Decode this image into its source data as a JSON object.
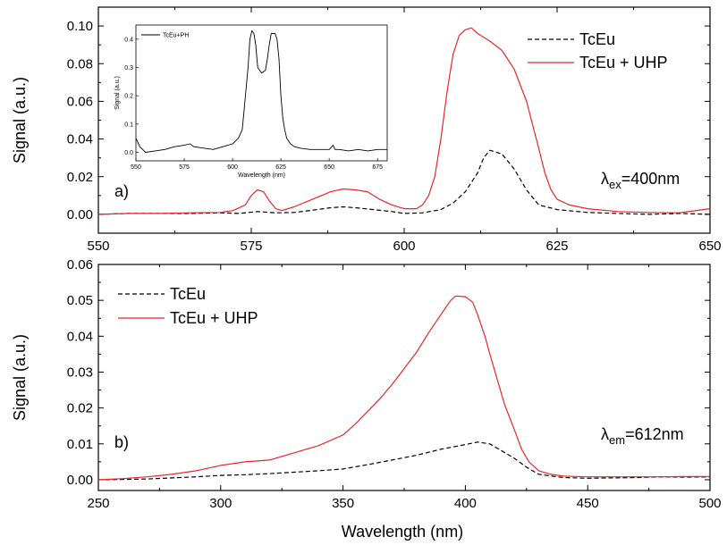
{
  "chart_data": [
    {
      "type": "line",
      "panel_label": "a)",
      "annotation": {
        "prefix": "λ",
        "subscript": "ex",
        "suffix": "=400nm"
      },
      "ylabel": "Signal (a.u.)",
      "xlim": [
        550,
        650
      ],
      "ylim": [
        -0.01,
        0.11
      ],
      "xticks": [
        "550",
        "575",
        "600",
        "625",
        "650"
      ],
      "yticks": [
        "0.00",
        "0.02",
        "0.04",
        "0.06",
        "0.08",
        "0.10"
      ],
      "legend_position": "top-right",
      "series": [
        {
          "name": "TcEu",
          "color": "#000000",
          "style": "dashed",
          "x": [
            550,
            555,
            560,
            565,
            570,
            573,
            576,
            579,
            582,
            585,
            588,
            590,
            592,
            595,
            598,
            600,
            603,
            606,
            608,
            610,
            612,
            613,
            614,
            616,
            618,
            620,
            622,
            625,
            630,
            635,
            640,
            645,
            650
          ],
          "y": [
            0.0,
            0.0005,
            0.0005,
            0.0005,
            0.0008,
            0.0005,
            0.0015,
            0.0008,
            0.001,
            0.0022,
            0.0035,
            0.004,
            0.0035,
            0.0025,
            0.0015,
            0.0005,
            0.0008,
            0.0025,
            0.006,
            0.012,
            0.022,
            0.03,
            0.034,
            0.032,
            0.024,
            0.013,
            0.005,
            0.0025,
            0.001,
            0.0005,
            0.0,
            0.0005,
            0.0
          ]
        },
        {
          "name": "TcEu + UHP",
          "color": "#e8262a",
          "style": "solid",
          "x": [
            550,
            555,
            560,
            565,
            570,
            572,
            574,
            575,
            576,
            577,
            578,
            579,
            580,
            582,
            585,
            588,
            590,
            592,
            594,
            596,
            598,
            600,
            602,
            603,
            604,
            605,
            606,
            607,
            608,
            609,
            610,
            611,
            612,
            613,
            614,
            616,
            618,
            620,
            622,
            623,
            624,
            625,
            627,
            630,
            635,
            640,
            645,
            650
          ],
          "y": [
            0.0,
            0.0005,
            0.0005,
            0.0008,
            0.001,
            0.002,
            0.005,
            0.01,
            0.013,
            0.012,
            0.007,
            0.003,
            0.002,
            0.004,
            0.008,
            0.012,
            0.0135,
            0.013,
            0.012,
            0.008,
            0.005,
            0.003,
            0.003,
            0.005,
            0.01,
            0.02,
            0.04,
            0.065,
            0.085,
            0.095,
            0.098,
            0.099,
            0.096,
            0.094,
            0.092,
            0.087,
            0.077,
            0.06,
            0.035,
            0.022,
            0.013,
            0.008,
            0.005,
            0.003,
            0.0015,
            0.001,
            0.0008,
            0.003
          ]
        }
      ],
      "inset": {
        "type": "line",
        "xlabel": "Wavelength (nm)",
        "ylabel": "Signal (a.u.)",
        "xlim": [
          550,
          680
        ],
        "ylim": [
          -0.03,
          0.45
        ],
        "xticks": [
          "550",
          "575",
          "600",
          "625",
          "650",
          "675"
        ],
        "yticks": [
          "0.0",
          "0.1",
          "0.2",
          "0.3",
          "0.4"
        ],
        "legend_position": "top-left",
        "series": [
          {
            "name": "TcEu+PH",
            "color": "#000000",
            "style": "solid",
            "x": [
              550,
              552,
              555,
              560,
              565,
              570,
              575,
              578,
              580,
              585,
              590,
              595,
              600,
              603,
              605,
              606,
              608,
              609,
              610,
              611,
              612,
              613,
              615,
              617,
              618,
              619,
              620,
              621,
              622,
              623,
              624,
              625,
              626,
              627,
              628,
              630,
              632,
              635,
              640,
              645,
              650,
              652,
              653,
              655,
              660,
              665,
              670,
              675,
              680
            ],
            "y": [
              0.05,
              0.02,
              0.0,
              0.005,
              0.01,
              0.02,
              0.025,
              0.03,
              0.02,
              0.015,
              0.01,
              0.02,
              0.03,
              0.05,
              0.08,
              0.15,
              0.3,
              0.4,
              0.43,
              0.42,
              0.38,
              0.3,
              0.28,
              0.29,
              0.33,
              0.38,
              0.42,
              0.42,
              0.42,
              0.4,
              0.33,
              0.2,
              0.12,
              0.08,
              0.05,
              0.03,
              0.02,
              0.015,
              0.01,
              0.01,
              0.01,
              0.025,
              0.01,
              0.01,
              0.005,
              0.01,
              0.005,
              0.01,
              0.01
            ]
          }
        ]
      }
    },
    {
      "type": "line",
      "panel_label": "b)",
      "annotation": {
        "prefix": "λ",
        "subscript": "em",
        "suffix": "=612nm"
      },
      "ylabel": "Signal (a.u.)",
      "xlabel": "Wavelength (nm)",
      "xlim": [
        250,
        500
      ],
      "ylim": [
        -0.003,
        0.06
      ],
      "xticks": [
        "250",
        "300",
        "350",
        "400",
        "450",
        "500"
      ],
      "yticks": [
        "0.00",
        "0.01",
        "0.02",
        "0.03",
        "0.04",
        "0.05",
        "0.06"
      ],
      "legend_position": "top-left",
      "series": [
        {
          "name": "TcEu",
          "color": "#000000",
          "style": "dashed",
          "x": [
            250,
            270,
            290,
            300,
            310,
            320,
            330,
            340,
            350,
            360,
            370,
            380,
            390,
            400,
            405,
            410,
            415,
            420,
            425,
            430,
            440,
            450,
            460,
            470,
            480,
            490,
            500
          ],
          "y": [
            0.0,
            0.0002,
            0.0008,
            0.0012,
            0.0014,
            0.0017,
            0.0021,
            0.0025,
            0.003,
            0.0042,
            0.0055,
            0.0068,
            0.0085,
            0.0098,
            0.0105,
            0.01,
            0.008,
            0.006,
            0.0035,
            0.0015,
            0.0006,
            0.0004,
            0.0005,
            0.0006,
            0.0008,
            0.0007,
            0.0008
          ]
        },
        {
          "name": "TcEu + UHP",
          "color": "#e8262a",
          "style": "solid",
          "x": [
            250,
            260,
            270,
            280,
            290,
            300,
            310,
            320,
            330,
            340,
            350,
            355,
            360,
            365,
            370,
            375,
            380,
            385,
            390,
            394,
            396,
            400,
            403,
            405,
            408,
            410,
            413,
            416,
            420,
            423,
            426,
            430,
            435,
            440,
            450,
            460,
            470,
            480,
            490,
            500
          ],
          "y": [
            0.0,
            0.0003,
            0.0008,
            0.0015,
            0.0025,
            0.004,
            0.005,
            0.0055,
            0.0075,
            0.0095,
            0.0125,
            0.0155,
            0.019,
            0.0225,
            0.0265,
            0.031,
            0.0355,
            0.041,
            0.046,
            0.05,
            0.0512,
            0.051,
            0.0495,
            0.046,
            0.04,
            0.035,
            0.028,
            0.021,
            0.014,
            0.0085,
            0.005,
            0.0025,
            0.0015,
            0.001,
            0.0008,
            0.0008,
            0.0008,
            0.0008,
            0.0009,
            0.0009
          ]
        }
      ]
    }
  ]
}
